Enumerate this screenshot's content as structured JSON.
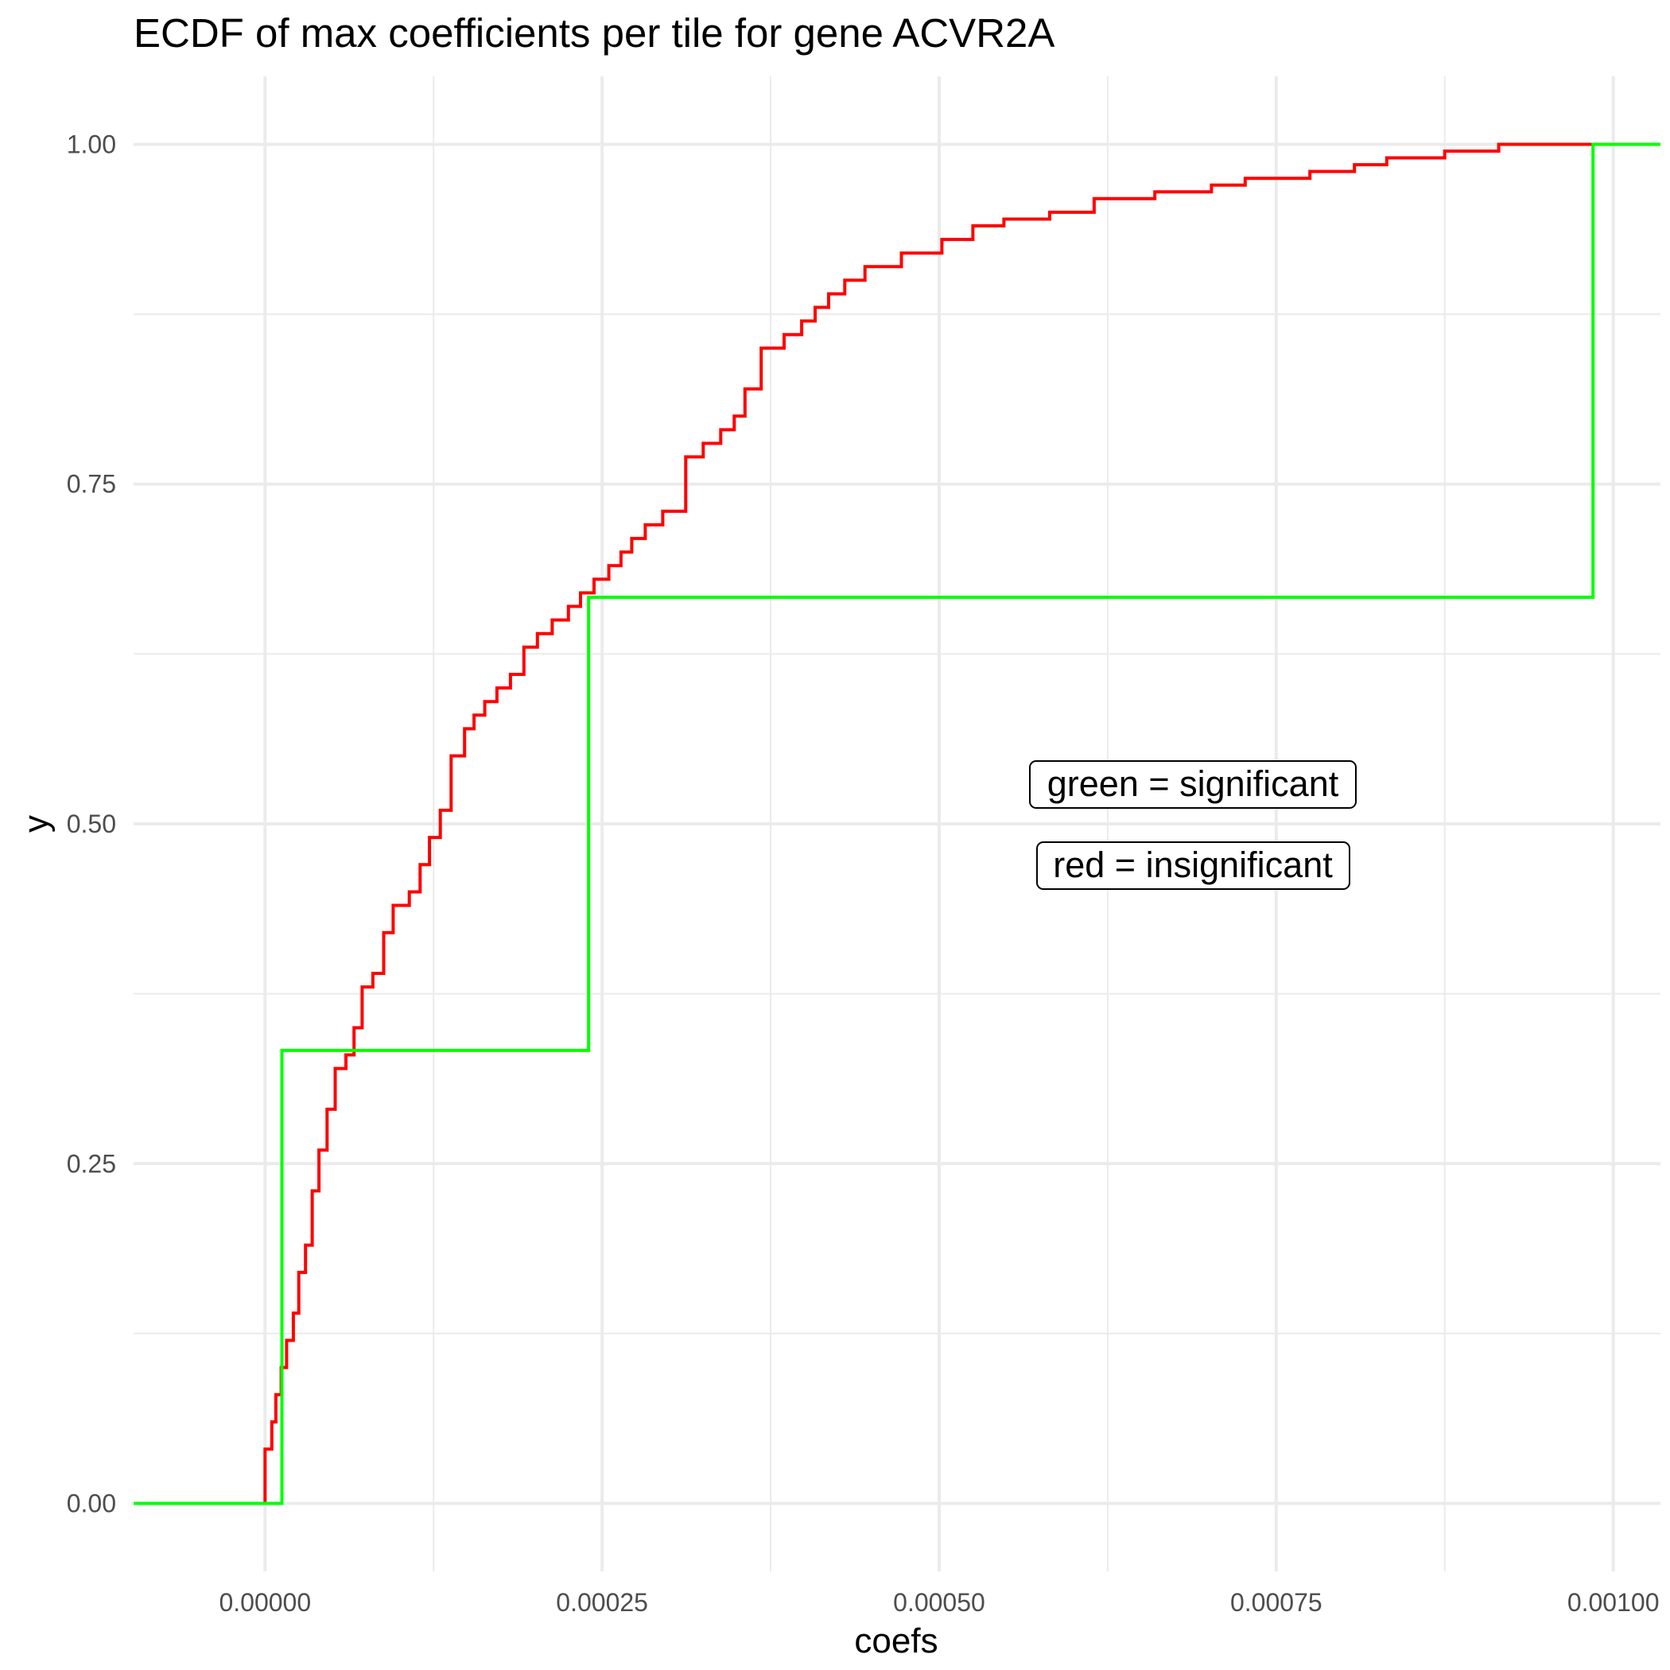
{
  "chart_data": {
    "type": "line",
    "subtype": "ecdf-step",
    "title": "ECDF of max coefficients per tile for gene ACVR2A",
    "xlabel": "coefs",
    "ylabel": "y",
    "xlim": [
      -9.75e-05,
      0.001035
    ],
    "ylim": [
      -0.05,
      1.05
    ],
    "x_ticks": [
      0,
      0.00025,
      0.0005,
      0.00075,
      0.001
    ],
    "x_tick_labels": [
      "0.00000",
      "0.00025",
      "0.00050",
      "0.00075",
      "0.00100"
    ],
    "y_ticks": [
      0,
      0.25,
      0.5,
      0.75,
      1
    ],
    "y_tick_labels": [
      "0.00",
      "0.25",
      "0.50",
      "0.75",
      "1.00"
    ],
    "grid": true,
    "legend": "none",
    "annotations": [
      "green = significant",
      "red = insignificant"
    ],
    "series": [
      {
        "color": "#ff0000",
        "x": [
          0.0,
          5e-06,
          8e-06,
          1.2e-05,
          1.6e-05,
          2.1e-05,
          2.5e-05,
          3e-05,
          3.5e-05,
          4e-05,
          4.6e-05,
          5.2e-05,
          6e-05,
          6.6e-05,
          7.2e-05,
          8e-05,
          8.8e-05,
          9.5e-05,
          0.000107,
          0.000115,
          0.000122,
          0.00013,
          0.000138,
          0.000148,
          0.000155,
          0.000163,
          0.000172,
          0.000182,
          0.000192,
          0.000202,
          0.000213,
          0.000225,
          0.000234,
          0.000244,
          0.000255,
          0.000264,
          0.000272,
          0.000282,
          0.000295,
          0.000312,
          0.000325,
          0.000338,
          0.000348,
          0.000356,
          0.000368,
          0.000385,
          0.000398,
          0.000408,
          0.000418,
          0.00043,
          0.000445,
          0.000472,
          0.000502,
          0.000525,
          0.000548,
          0.000582,
          0.000615,
          0.00066,
          0.000702,
          0.000727,
          0.000775,
          0.000808,
          0.000832,
          0.000875,
          0.000915,
          0.000985
        ],
        "y": [
          0.04,
          0.06,
          0.08,
          0.1,
          0.12,
          0.14,
          0.17,
          0.19,
          0.23,
          0.26,
          0.29,
          0.32,
          0.33,
          0.35,
          0.38,
          0.39,
          0.42,
          0.44,
          0.45,
          0.47,
          0.49,
          0.51,
          0.55,
          0.57,
          0.58,
          0.59,
          0.6,
          0.61,
          0.63,
          0.64,
          0.65,
          0.66,
          0.67,
          0.68,
          0.69,
          0.7,
          0.71,
          0.72,
          0.73,
          0.77,
          0.78,
          0.79,
          0.8,
          0.82,
          0.85,
          0.86,
          0.87,
          0.88,
          0.89,
          0.9,
          0.91,
          0.92,
          0.93,
          0.94,
          0.945,
          0.95,
          0.96,
          0.965,
          0.97,
          0.975,
          0.98,
          0.985,
          0.99,
          0.995,
          1.0,
          1.0
        ]
      },
      {
        "color": "#00ff00",
        "x": [
          1.25e-05,
          0.00024,
          0.000985
        ],
        "y": [
          0.3333,
          0.6667,
          1.0
        ]
      }
    ]
  }
}
